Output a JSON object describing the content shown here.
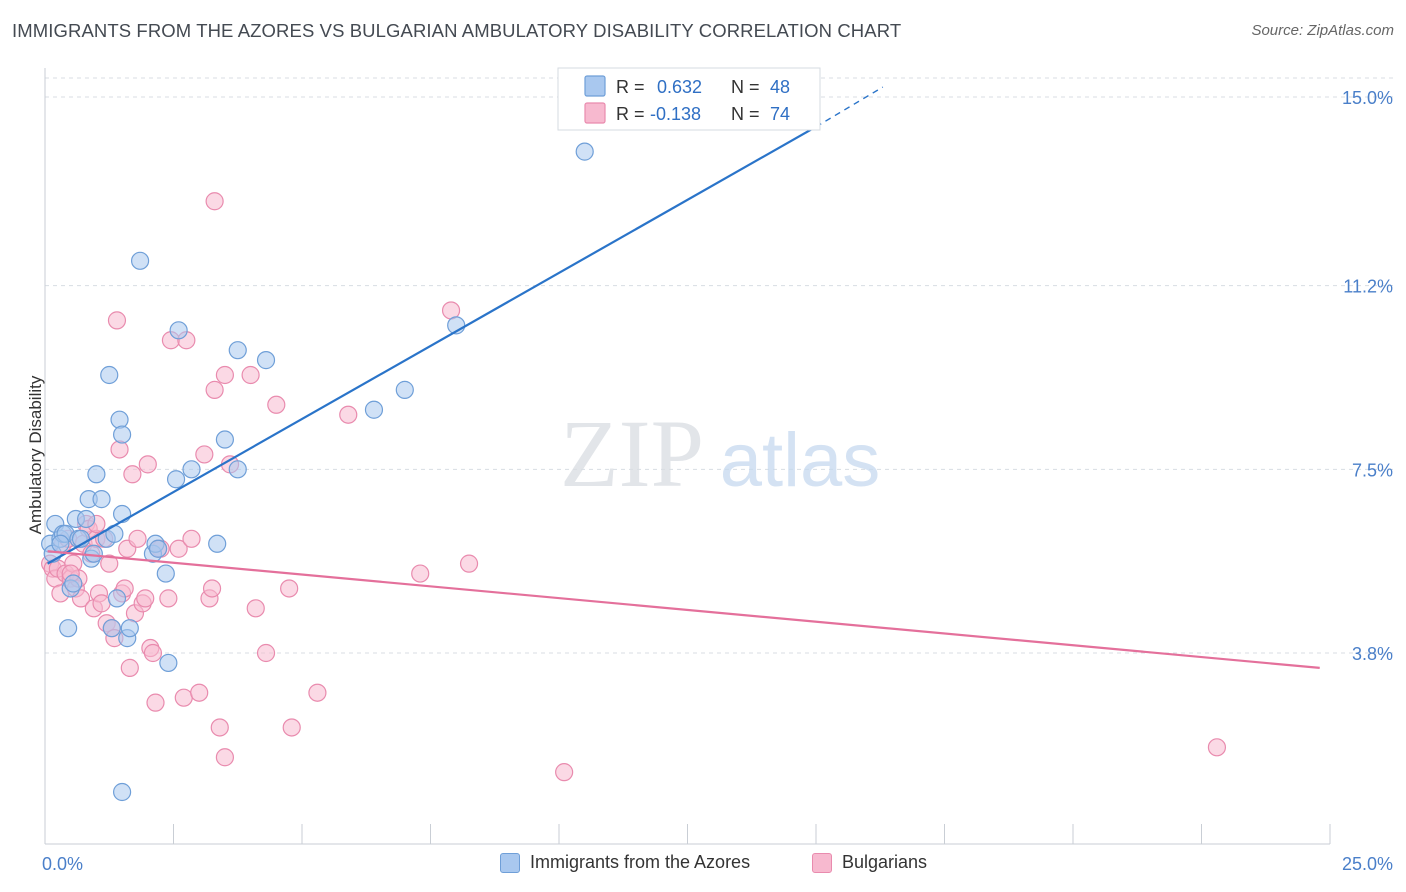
{
  "title": "IMMIGRANTS FROM THE AZORES VS BULGARIAN AMBULATORY DISABILITY CORRELATION CHART",
  "source": "Source: ZipAtlas.com",
  "watermark": {
    "zip": "ZIP",
    "atlas": "atlas"
  },
  "colors": {
    "blue_fill": "#a9c8ef",
    "blue_stroke": "#6f9fd8",
    "blue_line": "#2a74c9",
    "pink_fill": "#f7b9cf",
    "pink_stroke": "#e98bae",
    "pink_line": "#e4709b",
    "tick_label": "#4a7fc9",
    "grid": "#d8dde3"
  },
  "legend_top": {
    "rows": [
      {
        "r_label": "R =",
        "r_value": "0.632",
        "n_label": "N =",
        "n_value": "48"
      },
      {
        "r_label": "R =",
        "r_value": "-0.138",
        "n_label": "N =",
        "n_value": "74"
      }
    ]
  },
  "legend_bottom": {
    "series_a": "Immigrants from the Azores",
    "series_b": "Bulgarians"
  },
  "chart_data": {
    "type": "scatter",
    "title": "IMMIGRANTS FROM THE AZORES VS BULGARIAN AMBULATORY DISABILITY CORRELATION CHART",
    "xlabel": "",
    "ylabel": "Ambulatory Disability",
    "xlim": [
      0,
      25
    ],
    "ylim": [
      0.4,
      16.0
    ],
    "x_tick_labels": [
      "0.0%",
      "25.0%"
    ],
    "y_ticks": [
      3.8,
      7.5,
      11.2,
      15.0
    ],
    "y_tick_labels": [
      "3.8%",
      "7.5%",
      "11.2%",
      "15.0%"
    ],
    "grid": true,
    "legend_placement": "top-center",
    "series": [
      {
        "name": "Immigrants from the Azores",
        "color": "#a9c8ef",
        "R": 0.632,
        "N": 48,
        "trend": {
          "x0": 0.05,
          "y0": 5.6,
          "x1": 15.0,
          "y1": 14.4,
          "dashed_to_x": 16.3,
          "dashed_to_y": 15.2
        },
        "points": [
          [
            0.1,
            6.0
          ],
          [
            0.15,
            5.8
          ],
          [
            0.2,
            6.4
          ],
          [
            0.3,
            6.1
          ],
          [
            0.35,
            6.2
          ],
          [
            0.4,
            6.2
          ],
          [
            0.45,
            4.3
          ],
          [
            0.5,
            5.1
          ],
          [
            0.6,
            6.5
          ],
          [
            0.65,
            6.1
          ],
          [
            0.7,
            6.1
          ],
          [
            0.8,
            6.5
          ],
          [
            0.85,
            6.9
          ],
          [
            0.9,
            5.7
          ],
          [
            0.95,
            5.8
          ],
          [
            1.0,
            7.4
          ],
          [
            1.1,
            6.9
          ],
          [
            1.2,
            6.1
          ],
          [
            1.25,
            9.4
          ],
          [
            1.3,
            4.3
          ],
          [
            1.35,
            6.2
          ],
          [
            1.4,
            4.9
          ],
          [
            1.45,
            8.5
          ],
          [
            1.5,
            6.6
          ],
          [
            1.5,
            8.2
          ],
          [
            1.6,
            4.1
          ],
          [
            1.65,
            4.3
          ],
          [
            1.85,
            11.7
          ],
          [
            2.1,
            5.8
          ],
          [
            2.15,
            6.0
          ],
          [
            2.2,
            5.9
          ],
          [
            2.35,
            5.4
          ],
          [
            2.4,
            3.6
          ],
          [
            2.55,
            7.3
          ],
          [
            2.6,
            10.3
          ],
          [
            2.85,
            7.5
          ],
          [
            3.35,
            6.0
          ],
          [
            3.5,
            8.1
          ],
          [
            3.75,
            9.9
          ],
          [
            3.75,
            7.5
          ],
          [
            4.3,
            9.7
          ],
          [
            6.4,
            8.7
          ],
          [
            7.0,
            9.1
          ],
          [
            8.0,
            10.4
          ],
          [
            10.5,
            13.9
          ],
          [
            1.5,
            1.0
          ],
          [
            0.3,
            6.0
          ],
          [
            0.55,
            5.2
          ]
        ]
      },
      {
        "name": "Bulgarians",
        "color": "#f7b9cf",
        "R": -0.138,
        "N": 74,
        "trend": {
          "x0": 0.05,
          "y0": 5.85,
          "x1": 24.8,
          "y1": 3.5
        },
        "points": [
          [
            0.1,
            5.6
          ],
          [
            0.15,
            5.5
          ],
          [
            0.2,
            5.3
          ],
          [
            0.25,
            5.5
          ],
          [
            0.3,
            5.0
          ],
          [
            0.35,
            6.0
          ],
          [
            0.4,
            5.4
          ],
          [
            0.45,
            6.1
          ],
          [
            0.5,
            5.3
          ],
          [
            0.55,
            5.6
          ],
          [
            0.6,
            5.1
          ],
          [
            0.65,
            5.3
          ],
          [
            0.7,
            4.9
          ],
          [
            0.75,
            6.0
          ],
          [
            0.8,
            6.4
          ],
          [
            0.85,
            6.3
          ],
          [
            0.9,
            5.8
          ],
          [
            0.95,
            4.7
          ],
          [
            1.0,
            6.1
          ],
          [
            1.05,
            5.0
          ],
          [
            1.1,
            4.8
          ],
          [
            1.15,
            6.1
          ],
          [
            1.2,
            4.4
          ],
          [
            1.25,
            5.6
          ],
          [
            1.3,
            4.3
          ],
          [
            1.35,
            4.1
          ],
          [
            1.4,
            10.5
          ],
          [
            1.45,
            7.9
          ],
          [
            1.5,
            5.0
          ],
          [
            1.55,
            5.1
          ],
          [
            1.6,
            5.9
          ],
          [
            1.65,
            3.5
          ],
          [
            1.7,
            7.4
          ],
          [
            1.75,
            4.6
          ],
          [
            1.8,
            6.1
          ],
          [
            1.9,
            4.8
          ],
          [
            1.95,
            4.9
          ],
          [
            2.0,
            7.6
          ],
          [
            2.05,
            3.9
          ],
          [
            2.1,
            3.8
          ],
          [
            2.15,
            2.8
          ],
          [
            2.25,
            5.9
          ],
          [
            2.4,
            4.9
          ],
          [
            2.45,
            10.1
          ],
          [
            2.6,
            5.9
          ],
          [
            2.7,
            2.9
          ],
          [
            2.75,
            10.1
          ],
          [
            2.85,
            6.1
          ],
          [
            3.0,
            3.0
          ],
          [
            3.1,
            7.8
          ],
          [
            3.2,
            4.9
          ],
          [
            3.25,
            5.1
          ],
          [
            3.3,
            9.1
          ],
          [
            3.3,
            12.9
          ],
          [
            3.4,
            2.3
          ],
          [
            3.5,
            1.7
          ],
          [
            3.5,
            9.4
          ],
          [
            3.6,
            7.6
          ],
          [
            4.0,
            9.4
          ],
          [
            4.1,
            4.7
          ],
          [
            4.3,
            3.8
          ],
          [
            4.5,
            8.8
          ],
          [
            4.75,
            5.1
          ],
          [
            4.8,
            2.3
          ],
          [
            5.3,
            3.0
          ],
          [
            5.9,
            8.6
          ],
          [
            7.3,
            5.4
          ],
          [
            7.9,
            10.7
          ],
          [
            8.25,
            5.6
          ],
          [
            10.1,
            1.4
          ],
          [
            22.8,
            1.9
          ],
          [
            0.5,
            5.4
          ],
          [
            1.0,
            6.4
          ],
          [
            2.2,
            5.9
          ]
        ]
      }
    ]
  }
}
